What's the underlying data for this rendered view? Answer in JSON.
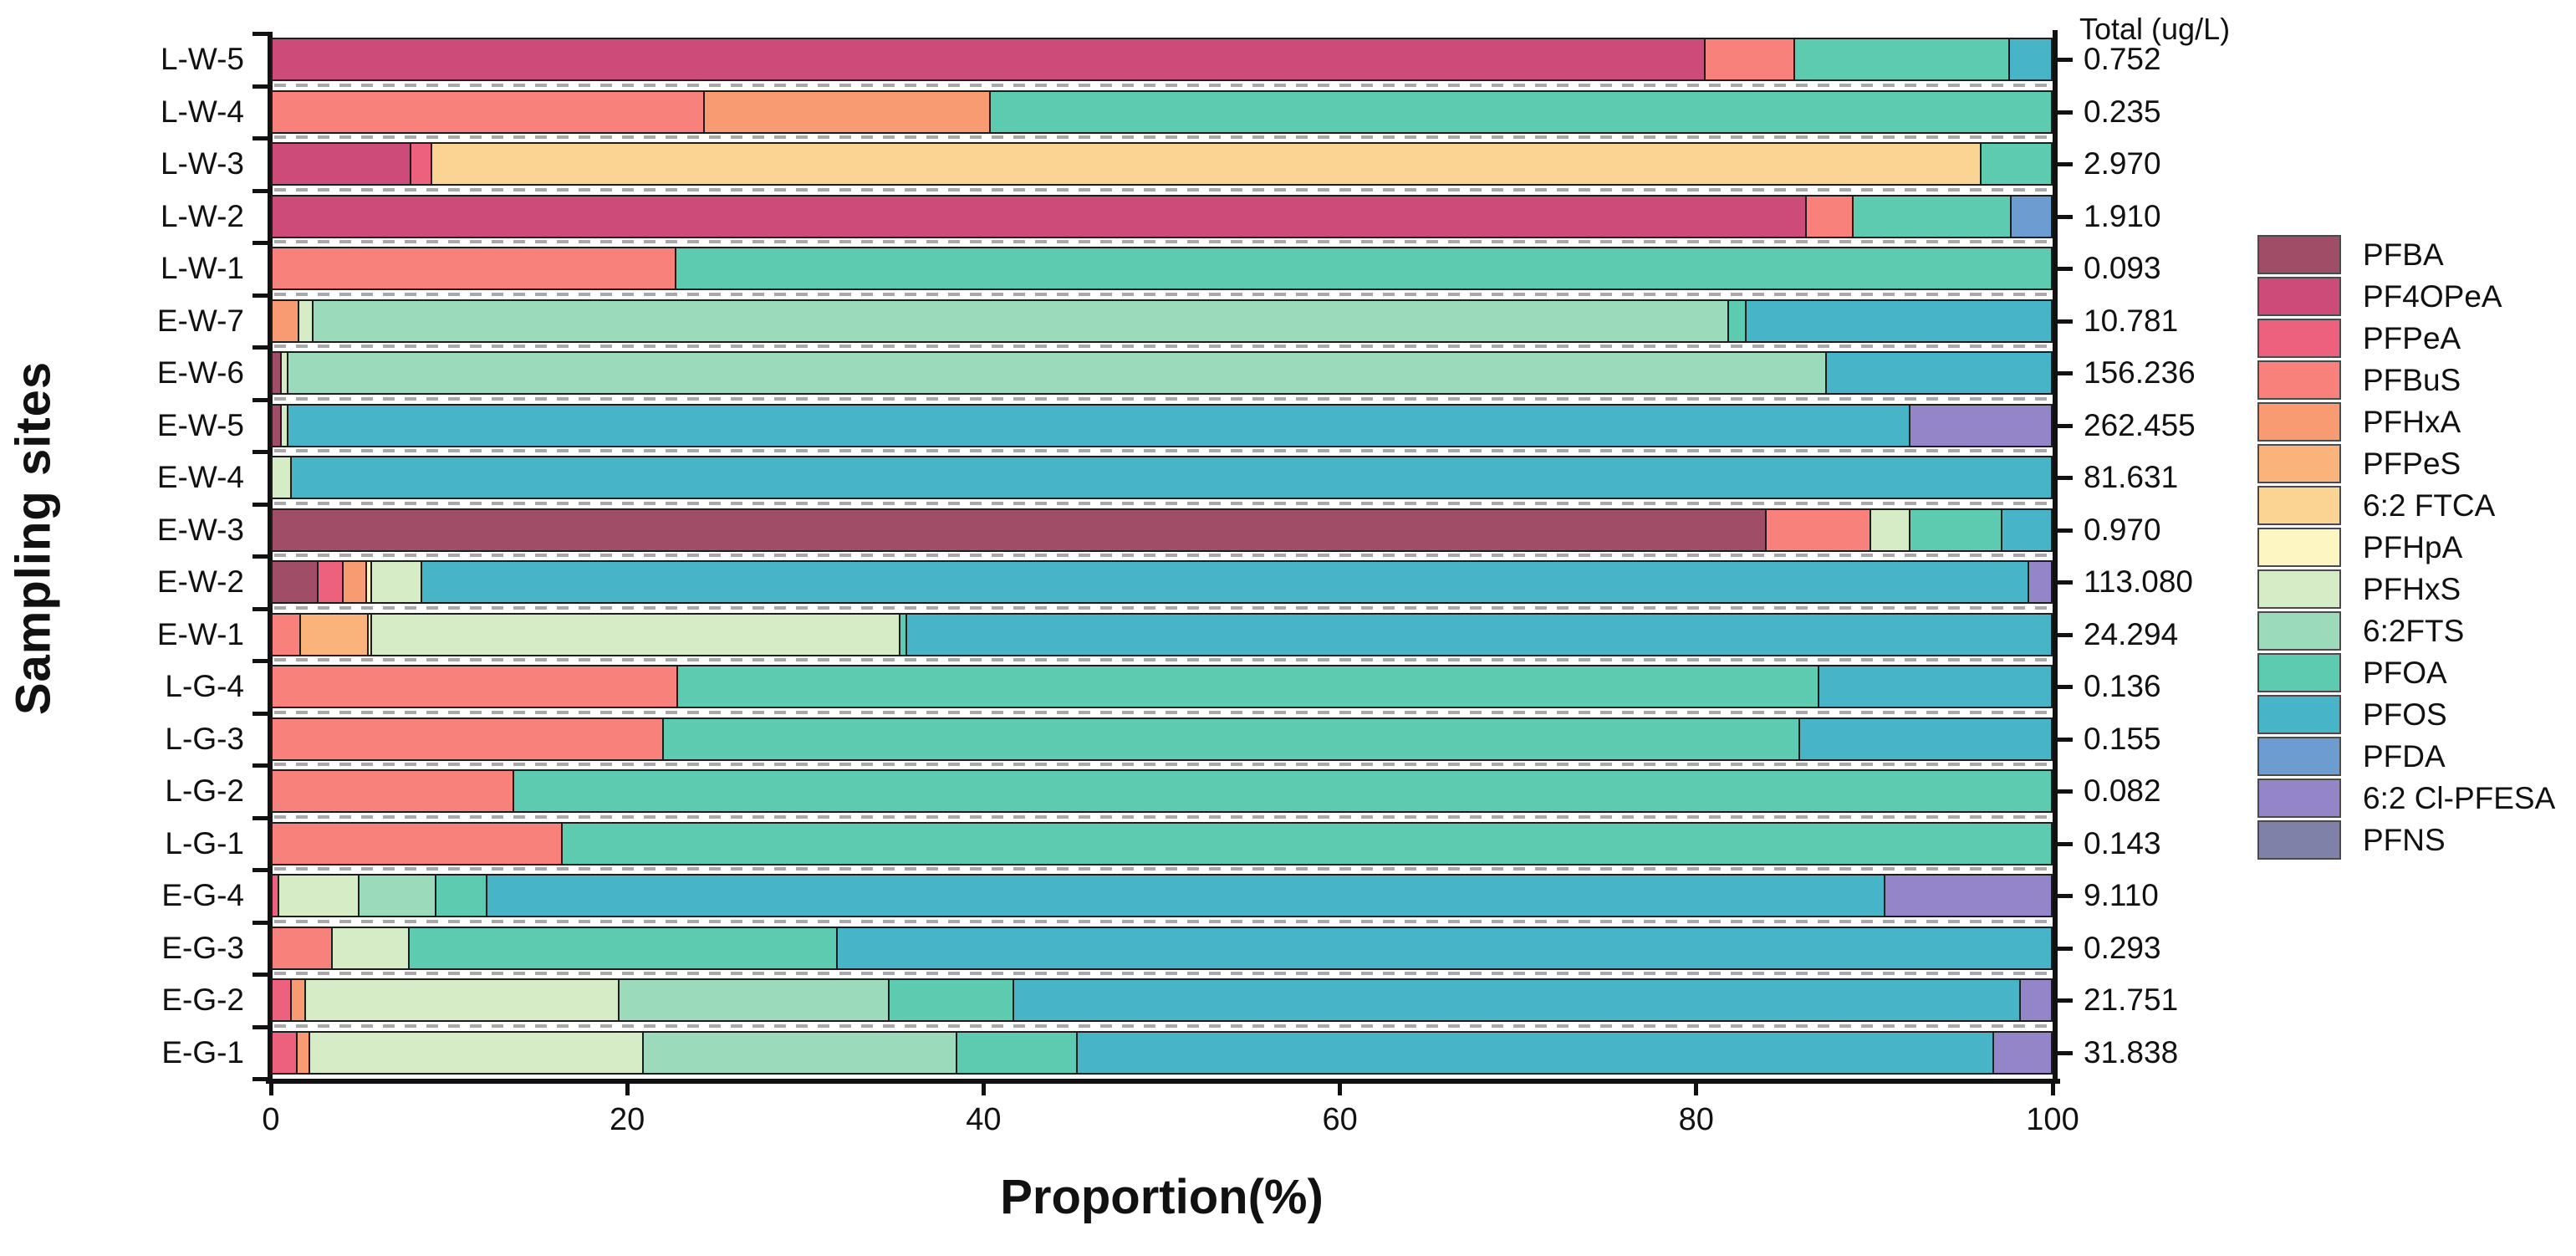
{
  "axes": {
    "y_label": "Sampling sites",
    "x_label": "Proportion(%)",
    "total_header": "Total (ug/L)"
  },
  "legend": [
    "PFBA",
    "PF4OPeA",
    "PFPeA",
    "PFBuS",
    "PFHxA",
    "PFPeS",
    "6:2 FTCA",
    "PFHpA",
    "PFHxS",
    "6:2FTS",
    "PFOA",
    "PFOS",
    "PFDA",
    "6:2 Cl-PFESA",
    "PFNS"
  ],
  "chart_data": {
    "type": "bar",
    "orientation": "horizontal-stacked",
    "title": "",
    "xlabel": "Proportion(%)",
    "ylabel": "Sampling sites",
    "xlim": [
      0,
      100
    ],
    "x_ticks": [
      0,
      20,
      40,
      60,
      80,
      100
    ],
    "grid": "dashed-row-separators",
    "legend_position": "right",
    "total_column_header": "Total (ug/L)",
    "compounds": {
      "PFBA": "#a04d67",
      "PF4OPeA": "#cc4b78",
      "PFPeA": "#ed617e",
      "PFBuS": "#f8827b",
      "PFHxA": "#f99b72",
      "PFPeS": "#fbb37c",
      "6:2 FTCA": "#fbd494",
      "PFHpA": "#fdf6c3",
      "PFHxS": "#d5ecc7",
      "6:2FTS": "#9cdabc",
      "PFOA": "#5dcbb0",
      "PFOS": "#48b4c7",
      "PFDA": "#6d9cd1",
      "6:2 Cl-PFESA": "#9485c8",
      "PFNS": "#7f81a9"
    },
    "sites": [
      {
        "site": "L-W-5",
        "total": "0.752",
        "segments": [
          {
            "c": "PF4OPeA",
            "v": 80.5
          },
          {
            "c": "PFBuS",
            "v": 5.0
          },
          {
            "c": "PFOA",
            "v": 12.1
          },
          {
            "c": "PFOS",
            "v": 2.4
          }
        ]
      },
      {
        "site": "L-W-4",
        "total": "0.235",
        "segments": [
          {
            "c": "PFBuS",
            "v": 24.2
          },
          {
            "c": "PFHxA",
            "v": 16.1
          },
          {
            "c": "PFOA",
            "v": 59.7
          }
        ]
      },
      {
        "site": "L-W-3",
        "total": "2.970",
        "segments": [
          {
            "c": "PF4OPeA",
            "v": 7.7
          },
          {
            "c": "PFPeA",
            "v": 1.2
          },
          {
            "c": "6:2 FTCA",
            "v": 87.1
          },
          {
            "c": "PFOA",
            "v": 4.0
          }
        ]
      },
      {
        "site": "L-W-2",
        "total": "1.910",
        "segments": [
          {
            "c": "PF4OPeA",
            "v": 86.2
          },
          {
            "c": "PFBuS",
            "v": 2.6
          },
          {
            "c": "PFOA",
            "v": 8.9
          },
          {
            "c": "PFDA",
            "v": 2.3
          }
        ]
      },
      {
        "site": "L-W-1",
        "total": "0.093",
        "segments": [
          {
            "c": "PFBuS",
            "v": 22.6
          },
          {
            "c": "PFOA",
            "v": 77.4
          }
        ]
      },
      {
        "site": "E-W-7",
        "total": "10.781",
        "segments": [
          {
            "c": "PFHxA",
            "v": 1.4
          },
          {
            "c": "PFHxS",
            "v": 0.8
          },
          {
            "c": "6:2FTS",
            "v": 79.6
          },
          {
            "c": "PFOA",
            "v": 1.0
          },
          {
            "c": "PFOS",
            "v": 17.2
          }
        ]
      },
      {
        "site": "E-W-6",
        "total": "156.236",
        "segments": [
          {
            "c": "PFBA",
            "v": 0.4
          },
          {
            "c": "PFHxS",
            "v": 0.4
          },
          {
            "c": "6:2FTS",
            "v": 86.5
          },
          {
            "c": "PFOS",
            "v": 12.7
          }
        ]
      },
      {
        "site": "E-W-5",
        "total": "262.455",
        "segments": [
          {
            "c": "PFBA",
            "v": 0.4
          },
          {
            "c": "PFHxS",
            "v": 0.4
          },
          {
            "c": "PFOS",
            "v": 91.2
          },
          {
            "c": "6:2 Cl-PFESA",
            "v": 8.0
          }
        ]
      },
      {
        "site": "E-W-4",
        "total": "81.631",
        "segments": [
          {
            "c": "PFHxS",
            "v": 1.0
          },
          {
            "c": "PFOS",
            "v": 99.0
          }
        ]
      },
      {
        "site": "E-W-3",
        "total": "0.970",
        "segments": [
          {
            "c": "PFBA",
            "v": 83.9
          },
          {
            "c": "PFBuS",
            "v": 5.9
          },
          {
            "c": "PFHxS",
            "v": 2.2
          },
          {
            "c": "PFOA",
            "v": 5.2
          },
          {
            "c": "PFOS",
            "v": 2.8
          }
        ]
      },
      {
        "site": "E-W-2",
        "total": "113.080",
        "segments": [
          {
            "c": "PFBA",
            "v": 2.5
          },
          {
            "c": "PFPeA",
            "v": 1.4
          },
          {
            "c": "PFHxA",
            "v": 1.3
          },
          {
            "c": "PFHpA",
            "v": 0.3
          },
          {
            "c": "PFHxS",
            "v": 2.8
          },
          {
            "c": "PFOS",
            "v": 90.4
          },
          {
            "c": "6:2 Cl-PFESA",
            "v": 1.3
          }
        ]
      },
      {
        "site": "E-W-1",
        "total": "24.294",
        "segments": [
          {
            "c": "PFBuS",
            "v": 1.5
          },
          {
            "c": "PFPeS",
            "v": 3.8
          },
          {
            "c": "PFHpA",
            "v": 0.2
          },
          {
            "c": "PFHxS",
            "v": 29.7
          },
          {
            "c": "PFOA",
            "v": 0.4
          },
          {
            "c": "PFOS",
            "v": 64.4
          }
        ]
      },
      {
        "site": "L-G-4",
        "total": "0.136",
        "segments": [
          {
            "c": "PFBuS",
            "v": 22.7
          },
          {
            "c": "PFOA",
            "v": 64.2
          },
          {
            "c": "PFOS",
            "v": 13.1
          }
        ]
      },
      {
        "site": "L-G-3",
        "total": "0.155",
        "segments": [
          {
            "c": "PFBuS",
            "v": 21.9
          },
          {
            "c": "PFOA",
            "v": 63.9
          },
          {
            "c": "PFOS",
            "v": 14.2
          }
        ]
      },
      {
        "site": "L-G-2",
        "total": "0.082",
        "segments": [
          {
            "c": "PFBuS",
            "v": 13.5
          },
          {
            "c": "PFOA",
            "v": 86.5
          }
        ]
      },
      {
        "site": "L-G-1",
        "total": "0.143",
        "segments": [
          {
            "c": "PFBuS",
            "v": 16.2
          },
          {
            "c": "PFOA",
            "v": 83.8
          }
        ]
      },
      {
        "site": "E-G-4",
        "total": "9.110",
        "segments": [
          {
            "c": "PFPeA",
            "v": 0.3
          },
          {
            "c": "PFHxS",
            "v": 4.5
          },
          {
            "c": "6:2FTS",
            "v": 4.3
          },
          {
            "c": "PFOA",
            "v": 2.9
          },
          {
            "c": "PFOS",
            "v": 78.6
          },
          {
            "c": "6:2 Cl-PFESA",
            "v": 9.4
          }
        ]
      },
      {
        "site": "E-G-3",
        "total": "0.293",
        "segments": [
          {
            "c": "PFBuS",
            "v": 3.3
          },
          {
            "c": "PFHxS",
            "v": 4.3
          },
          {
            "c": "PFOA",
            "v": 24.1
          },
          {
            "c": "PFOS",
            "v": 68.3
          }
        ]
      },
      {
        "site": "E-G-2",
        "total": "21.751",
        "segments": [
          {
            "c": "PFPeA",
            "v": 1.0
          },
          {
            "c": "PFHxA",
            "v": 0.8
          },
          {
            "c": "PFHxS",
            "v": 17.6
          },
          {
            "c": "6:2FTS",
            "v": 15.2
          },
          {
            "c": "PFOA",
            "v": 7.0
          },
          {
            "c": "PFOS",
            "v": 56.6
          },
          {
            "c": "6:2 Cl-PFESA",
            "v": 1.8
          }
        ]
      },
      {
        "site": "E-G-1",
        "total": "31.838",
        "segments": [
          {
            "c": "PFPeA",
            "v": 1.3
          },
          {
            "c": "PFHxA",
            "v": 0.7
          },
          {
            "c": "PFHxS",
            "v": 18.8
          },
          {
            "c": "6:2FTS",
            "v": 17.6
          },
          {
            "c": "PFOA",
            "v": 6.8
          },
          {
            "c": "PFOS",
            "v": 51.5
          },
          {
            "c": "6:2 Cl-PFESA",
            "v": 3.3
          }
        ]
      }
    ]
  }
}
